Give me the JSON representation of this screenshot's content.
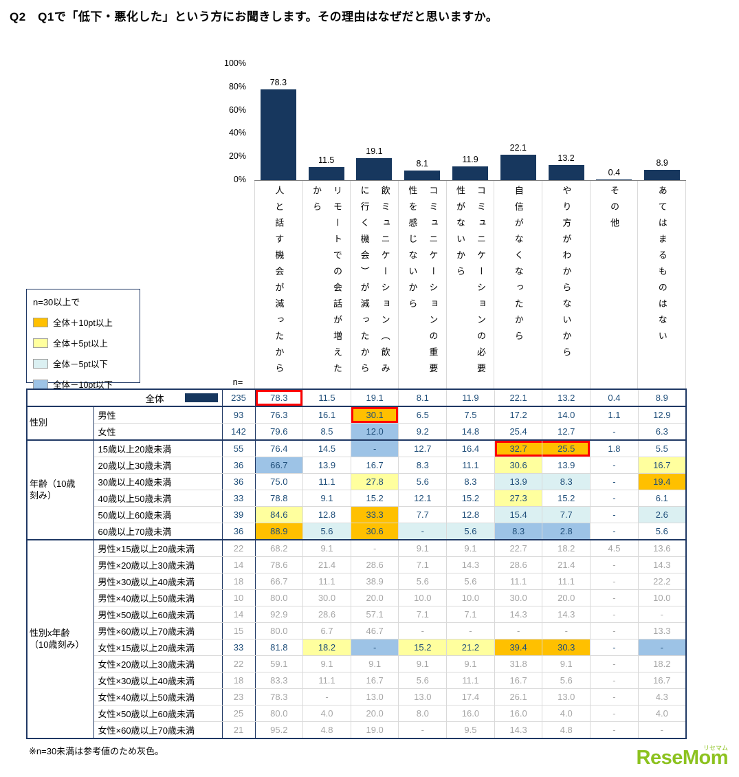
{
  "title": "Q2　Q1で「低下・悪化した」という方にお聞きします。その理由はなぜだと思いますか。",
  "footnote": "※n=30未満は参考値のため灰色。",
  "logo": {
    "text": "ReseMom",
    "sub": "リセマム"
  },
  "colors": {
    "bar": "#17375E",
    "border_navy": "#1F3864",
    "navy_text": "#1F4E79",
    "gray_text": "#A6A6A6",
    "plus10": "#FFC000",
    "plus5": "#FFFF9E",
    "minus5": "#DBF0F2",
    "minus10": "#9DC3E6",
    "red": "#FE0000",
    "logo_green": "#8CC21F"
  },
  "legend": {
    "title": "n=30以上で",
    "items": [
      {
        "label": "全体＋10pt以上",
        "class": "plus10"
      },
      {
        "label": "全体＋5pt以上",
        "class": "plus5"
      },
      {
        "label": "全体－5pt以下",
        "class": "minus5"
      },
      {
        "label": "全体－10pt以下",
        "class": "minus10"
      }
    ]
  },
  "chart_data": {
    "type": "bar",
    "title": "",
    "xlabel": "",
    "ylabel": "",
    "ylim": [
      0,
      100
    ],
    "grid": false,
    "bar_color": "#17375E",
    "ytick_labels": [
      "100%",
      "80%",
      "60%",
      "40%",
      "20%",
      "0%"
    ],
    "categories": [
      "人と話す機会が減ったから",
      "リモートでの会話が増えたから",
      "飲ミュニケーション（飲みに行く機会）が減ったから",
      "コミュニケーションの重要性を感じないから",
      "コミュニケーションの必要性がないから",
      "自信がなくなったから",
      "やり方がわからないから",
      "その他",
      "あてはまるものはない"
    ],
    "values": [
      78.3,
      11.5,
      19.1,
      8.1,
      11.9,
      22.1,
      13.2,
      0.4,
      8.9
    ]
  },
  "table": {
    "n_label": "n=",
    "total_row": {
      "label": "全体",
      "n": "235",
      "cells": [
        {
          "v": "78.3",
          "r": "solo"
        },
        "11.5",
        "19.1",
        "8.1",
        "11.9",
        "22.1",
        "13.2",
        "0.4",
        "8.9"
      ]
    },
    "groups": [
      {
        "label": "性別",
        "rows": [
          {
            "label": "男性",
            "n": "93",
            "cells": [
              "76.3",
              "16.1",
              {
                "v": "30.1",
                "c": "plus10",
                "r": "solo"
              },
              "6.5",
              "7.5",
              "17.2",
              "14.0",
              "1.1",
              "12.9"
            ]
          },
          {
            "label": "女性",
            "n": "142",
            "cells": [
              "79.6",
              "8.5",
              {
                "v": "12.0",
                "c": "minus10"
              },
              "9.2",
              "14.8",
              "25.4",
              "12.7",
              "-",
              "6.3"
            ]
          }
        ]
      },
      {
        "label": "年齢（10歳\n刻み）",
        "rows": [
          {
            "label": "15歳以上20歳未満",
            "n": "55",
            "cells": [
              "76.4",
              "14.5",
              {
                "v": "-",
                "c": "minus10"
              },
              "12.7",
              "16.4",
              {
                "v": "32.7",
                "c": "plus10",
                "r": "left"
              },
              {
                "v": "25.5",
                "c": "plus10",
                "r": "right"
              },
              "1.8",
              "5.5"
            ]
          },
          {
            "label": "20歳以上30歳未満",
            "n": "36",
            "cells": [
              {
                "v": "66.7",
                "c": "minus10"
              },
              "13.9",
              "16.7",
              "8.3",
              "11.1",
              {
                "v": "30.6",
                "c": "plus5"
              },
              "13.9",
              "-",
              {
                "v": "16.7",
                "c": "plus5"
              }
            ]
          },
          {
            "label": "30歳以上40歳未満",
            "n": "36",
            "cells": [
              "75.0",
              "11.1",
              {
                "v": "27.8",
                "c": "plus5"
              },
              "5.6",
              "8.3",
              {
                "v": "13.9",
                "c": "minus5"
              },
              {
                "v": "8.3",
                "c": "minus5"
              },
              "-",
              {
                "v": "19.4",
                "c": "plus10"
              }
            ]
          },
          {
            "label": "40歳以上50歳未満",
            "n": "33",
            "cells": [
              "78.8",
              "9.1",
              "15.2",
              "12.1",
              "15.2",
              {
                "v": "27.3",
                "c": "plus5"
              },
              "15.2",
              "-",
              "6.1"
            ]
          },
          {
            "label": "50歳以上60歳未満",
            "n": "39",
            "cells": [
              {
                "v": "84.6",
                "c": "plus5"
              },
              "12.8",
              {
                "v": "33.3",
                "c": "plus10"
              },
              "7.7",
              "12.8",
              {
                "v": "15.4",
                "c": "minus5"
              },
              {
                "v": "7.7",
                "c": "minus5"
              },
              "-",
              {
                "v": "2.6",
                "c": "minus5"
              }
            ]
          },
          {
            "label": "60歳以上70歳未満",
            "n": "36",
            "cells": [
              {
                "v": "88.9",
                "c": "plus10"
              },
              {
                "v": "5.6",
                "c": "minus5"
              },
              {
                "v": "30.6",
                "c": "plus10"
              },
              {
                "v": "-",
                "c": "minus5"
              },
              {
                "v": "5.6",
                "c": "minus5"
              },
              {
                "v": "8.3",
                "c": "minus10"
              },
              {
                "v": "2.8",
                "c": "minus10"
              },
              "-",
              "5.6"
            ]
          }
        ]
      },
      {
        "label": "性別x年齢\n（10歳刻み）",
        "rows": [
          {
            "label": "男性×15歳以上20歳未満",
            "n": "22",
            "gray": true,
            "cells": [
              "68.2",
              "9.1",
              "-",
              "9.1",
              "9.1",
              "22.7",
              "18.2",
              "4.5",
              "13.6"
            ]
          },
          {
            "label": "男性×20歳以上30歳未満",
            "n": "14",
            "gray": true,
            "cells": [
              "78.6",
              "21.4",
              "28.6",
              "7.1",
              "14.3",
              "28.6",
              "21.4",
              "-",
              "14.3"
            ]
          },
          {
            "label": "男性×30歳以上40歳未満",
            "n": "18",
            "gray": true,
            "cells": [
              "66.7",
              "11.1",
              "38.9",
              "5.6",
              "5.6",
              "11.1",
              "11.1",
              "-",
              "22.2"
            ]
          },
          {
            "label": "男性×40歳以上50歳未満",
            "n": "10",
            "gray": true,
            "cells": [
              "80.0",
              "30.0",
              "20.0",
              "10.0",
              "10.0",
              "30.0",
              "20.0",
              "-",
              "10.0"
            ]
          },
          {
            "label": "男性×50歳以上60歳未満",
            "n": "14",
            "gray": true,
            "cells": [
              "92.9",
              "28.6",
              "57.1",
              "7.1",
              "7.1",
              "14.3",
              "14.3",
              "-",
              "-"
            ]
          },
          {
            "label": "男性×60歳以上70歳未満",
            "n": "15",
            "gray": true,
            "cells": [
              "80.0",
              "6.7",
              "46.7",
              "-",
              "-",
              "-",
              "-",
              "-",
              "13.3"
            ]
          },
          {
            "label": "女性×15歳以上20歳未満",
            "n": "33",
            "cells": [
              "81.8",
              {
                "v": "18.2",
                "c": "plus5"
              },
              {
                "v": "-",
                "c": "minus10"
              },
              {
                "v": "15.2",
                "c": "plus5"
              },
              {
                "v": "21.2",
                "c": "plus5"
              },
              {
                "v": "39.4",
                "c": "plus10"
              },
              {
                "v": "30.3",
                "c": "plus10"
              },
              "-",
              {
                "v": "-",
                "c": "minus10"
              }
            ]
          },
          {
            "label": "女性×20歳以上30歳未満",
            "n": "22",
            "gray": true,
            "cells": [
              "59.1",
              "9.1",
              "9.1",
              "9.1",
              "9.1",
              "31.8",
              "9.1",
              "-",
              "18.2"
            ]
          },
          {
            "label": "女性×30歳以上40歳未満",
            "n": "18",
            "gray": true,
            "cells": [
              "83.3",
              "11.1",
              "16.7",
              "5.6",
              "11.1",
              "16.7",
              "5.6",
              "-",
              "16.7"
            ]
          },
          {
            "label": "女性×40歳以上50歳未満",
            "n": "23",
            "gray": true,
            "cells": [
              "78.3",
              "-",
              "13.0",
              "13.0",
              "17.4",
              "26.1",
              "13.0",
              "-",
              "4.3"
            ]
          },
          {
            "label": "女性×50歳以上60歳未満",
            "n": "25",
            "gray": true,
            "cells": [
              "80.0",
              "4.0",
              "20.0",
              "8.0",
              "16.0",
              "16.0",
              "4.0",
              "-",
              "4.0"
            ]
          },
          {
            "label": "女性×60歳以上70歳未満",
            "n": "21",
            "gray": true,
            "cells": [
              "95.2",
              "4.8",
              "19.0",
              "-",
              "9.5",
              "14.3",
              "4.8",
              "-",
              "-"
            ]
          }
        ]
      }
    ]
  }
}
